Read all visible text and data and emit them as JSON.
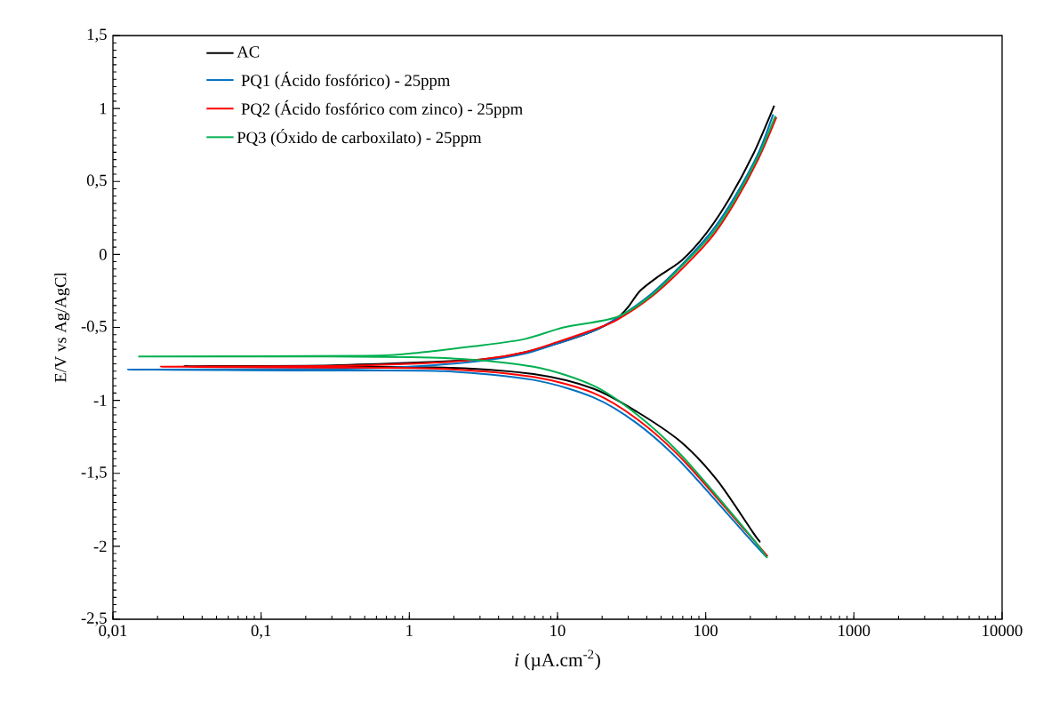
{
  "chart_data": {
    "type": "line",
    "xlabel": "*i* (µA.cm$^{-2}$)",
    "ylabel": "E/V vs Ag/AgCl",
    "log": "x",
    "xlim": [
      0.01,
      10000
    ],
    "xticks": [
      {
        "value": 0.01,
        "label": "0,01"
      },
      {
        "value": 0.1,
        "label": "0,1"
      },
      1,
      10,
      100,
      1000,
      10000
    ],
    "ylim": [
      -2.5,
      1.5
    ],
    "yticks": [
      {
        "value": -2.5,
        "label": "-2,5"
      },
      -2,
      {
        "value": -1.5,
        "label": "-1,5"
      },
      -1,
      {
        "value": -0.5,
        "label": "-0,5"
      },
      0,
      {
        "value": 0.5,
        "label": "0,5"
      },
      1,
      {
        "value": 1.5,
        "label": "1,5"
      }
    ],
    "grid": false,
    "legend": "top left",
    "marker": "none",
    "line_style": "solid",
    "series": [
      {
        "name": "AC",
        "color": "#000000",
        "x": [
          234,
          210,
          120,
          69,
          34.6,
          17.5,
          6.9,
          1.74,
          0.3,
          0.03,
          0.3,
          3,
          6,
          10,
          17,
          25,
          30,
          36,
          48,
          69,
          100,
          144,
          210,
          290
        ],
        "values": [
          -1.97,
          -1.91,
          -1.55,
          -1.29,
          -1.08,
          -0.92,
          -0.82,
          -0.775,
          -0.77,
          -0.765,
          -0.76,
          -0.72,
          -0.67,
          -0.61,
          -0.53,
          -0.44,
          -0.36,
          -0.25,
          -0.15,
          -0.04,
          0.14,
          0.38,
          0.69,
          1.02
        ]
      },
      {
        "name": " PQ1 (Ácido fosfórico) - 25ppm",
        "color": "#0070c0",
        "x": [
          255,
          183,
          69,
          34.6,
          17.5,
          6.9,
          1.74,
          0.3,
          0.0126,
          0.3,
          1,
          3,
          6,
          10,
          17,
          25,
          43,
          69,
          110,
          158,
          228,
          285
        ],
        "values": [
          -2.07,
          -1.91,
          -1.43,
          -1.16,
          -0.98,
          -0.86,
          -0.8,
          -0.795,
          -0.79,
          -0.785,
          -0.77,
          -0.73,
          -0.68,
          -0.61,
          -0.53,
          -0.44,
          -0.27,
          -0.07,
          0.16,
          0.4,
          0.7,
          0.96
        ]
      },
      {
        "name": " PQ2 (Ácido fosfórico com zinco) - 25ppm",
        "color": "#ff0000",
        "x": [
          262,
          188,
          69,
          34.6,
          17.5,
          6.9,
          1.74,
          0.3,
          0.021,
          0.3,
          1,
          3,
          6,
          10,
          17,
          25,
          43,
          69,
          110,
          158,
          228,
          300
        ],
        "values": [
          -2.07,
          -1.9,
          -1.4,
          -1.13,
          -0.95,
          -0.84,
          -0.785,
          -0.775,
          -0.77,
          -0.765,
          -0.75,
          -0.72,
          -0.67,
          -0.6,
          -0.52,
          -0.45,
          -0.29,
          -0.1,
          0.12,
          0.36,
          0.66,
          0.94
        ]
      },
      {
        "name": "PQ3 (Óxido de carboxilato) - 25ppm",
        "color": "#00b050",
        "x": [
          260,
          190,
          69,
          34.6,
          17.5,
          6.9,
          1.74,
          0.3,
          0.015,
          0.44,
          1,
          2.7,
          6,
          11,
          25,
          43,
          69,
          110,
          158,
          228,
          295
        ],
        "values": [
          -2.08,
          -1.9,
          -1.38,
          -1.1,
          -0.9,
          -0.77,
          -0.71,
          -0.7,
          -0.7,
          -0.695,
          -0.68,
          -0.63,
          -0.58,
          -0.5,
          -0.43,
          -0.28,
          -0.08,
          0.14,
          0.38,
          0.68,
          0.95
        ]
      }
    ]
  }
}
